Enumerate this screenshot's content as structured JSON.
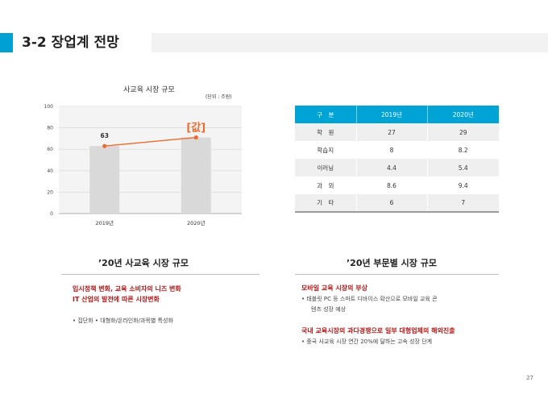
{
  "header": {
    "title": "3-2 장업계 전망"
  },
  "chart_data": {
    "type": "bar",
    "title": "사교육 시장 규모",
    "unit": "(단위 : 조원)",
    "categories": [
      "2019년",
      "2020년"
    ],
    "values": [
      63,
      71
    ],
    "line_values": [
      63,
      71
    ],
    "data_labels": [
      "63",
      "[값]"
    ],
    "ylim": [
      0,
      100
    ],
    "yticks": [
      0,
      20,
      40,
      60,
      80,
      100
    ],
    "grid": true,
    "colors": {
      "bar": "#d9d9d9",
      "line": "#ed6b2e",
      "accent_label": "#ed6b2e"
    }
  },
  "table": {
    "headers": [
      "구　분",
      "2019년",
      "2020년"
    ],
    "rows": [
      [
        "학　원",
        "27",
        "29"
      ],
      [
        "학습지",
        "8",
        "8.2"
      ],
      [
        "이러닝",
        "4.4",
        "5.4"
      ],
      [
        "과　외",
        "8.6",
        "9.4"
      ],
      [
        "기　타",
        "6",
        "7"
      ]
    ]
  },
  "left_section": {
    "title": "’20년 사교육 시장 규모",
    "highlights": [
      "입시정책 변화, 교육 소비자의 니즈 변화",
      "IT 산업의 발전에 따른 시장변화"
    ],
    "bullet": "•  집단화 • 대형화/온라인화/과목별 특성화"
  },
  "right_section": {
    "title": "’20년 부문별 시장 규모",
    "highlight1": "모바일 교육 시장의 부상",
    "bullet1": "•  태블릿 PC 등 스마트 디바이스 확산으로 모바일 교육 콘",
    "bullet1_cont": "텐츠 성장 예상",
    "highlight2": "국내 교육시장의 과다경쟁으로 일부 대형업체의 해외진출",
    "bullet2": "•  중국 사교육 시장 연간 20%에 달하는 고속 성장 단계"
  },
  "page_number": "27"
}
